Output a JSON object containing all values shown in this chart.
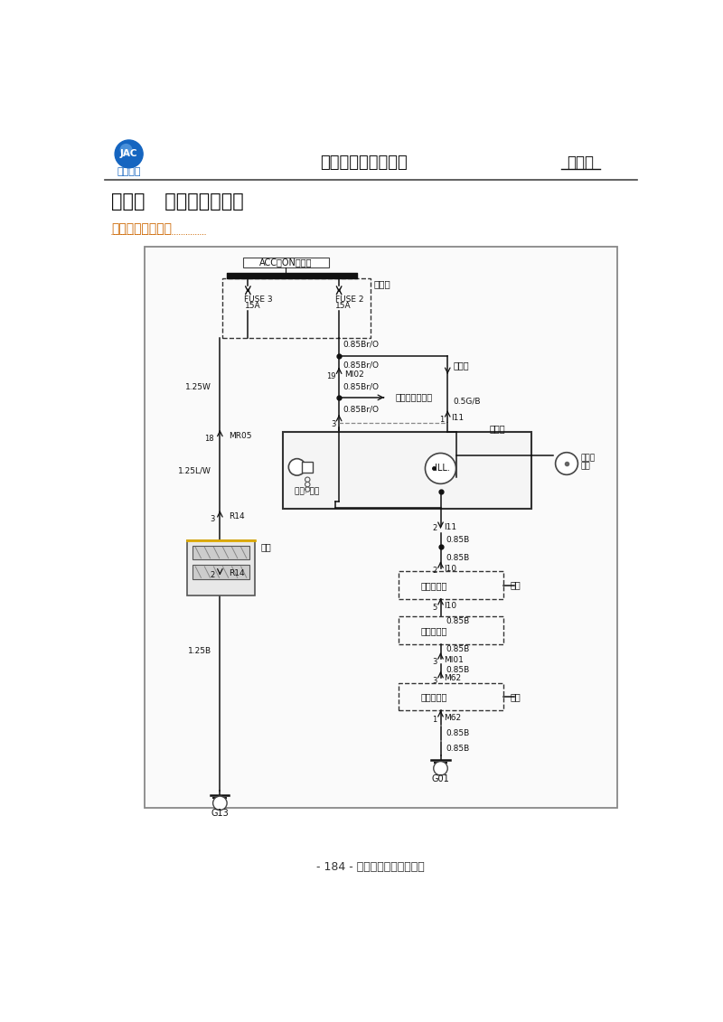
{
  "title_chapter": "第五章   车身电气线路图",
  "subtitle": "一、点烟器线路图",
  "header_center": "瑞风商务车维修手册",
  "header_right": "线路图",
  "header_left": "江淮汽车",
  "footer": "- 184 - 江淮汽车股份有限公司",
  "bg_color": "#ffffff"
}
